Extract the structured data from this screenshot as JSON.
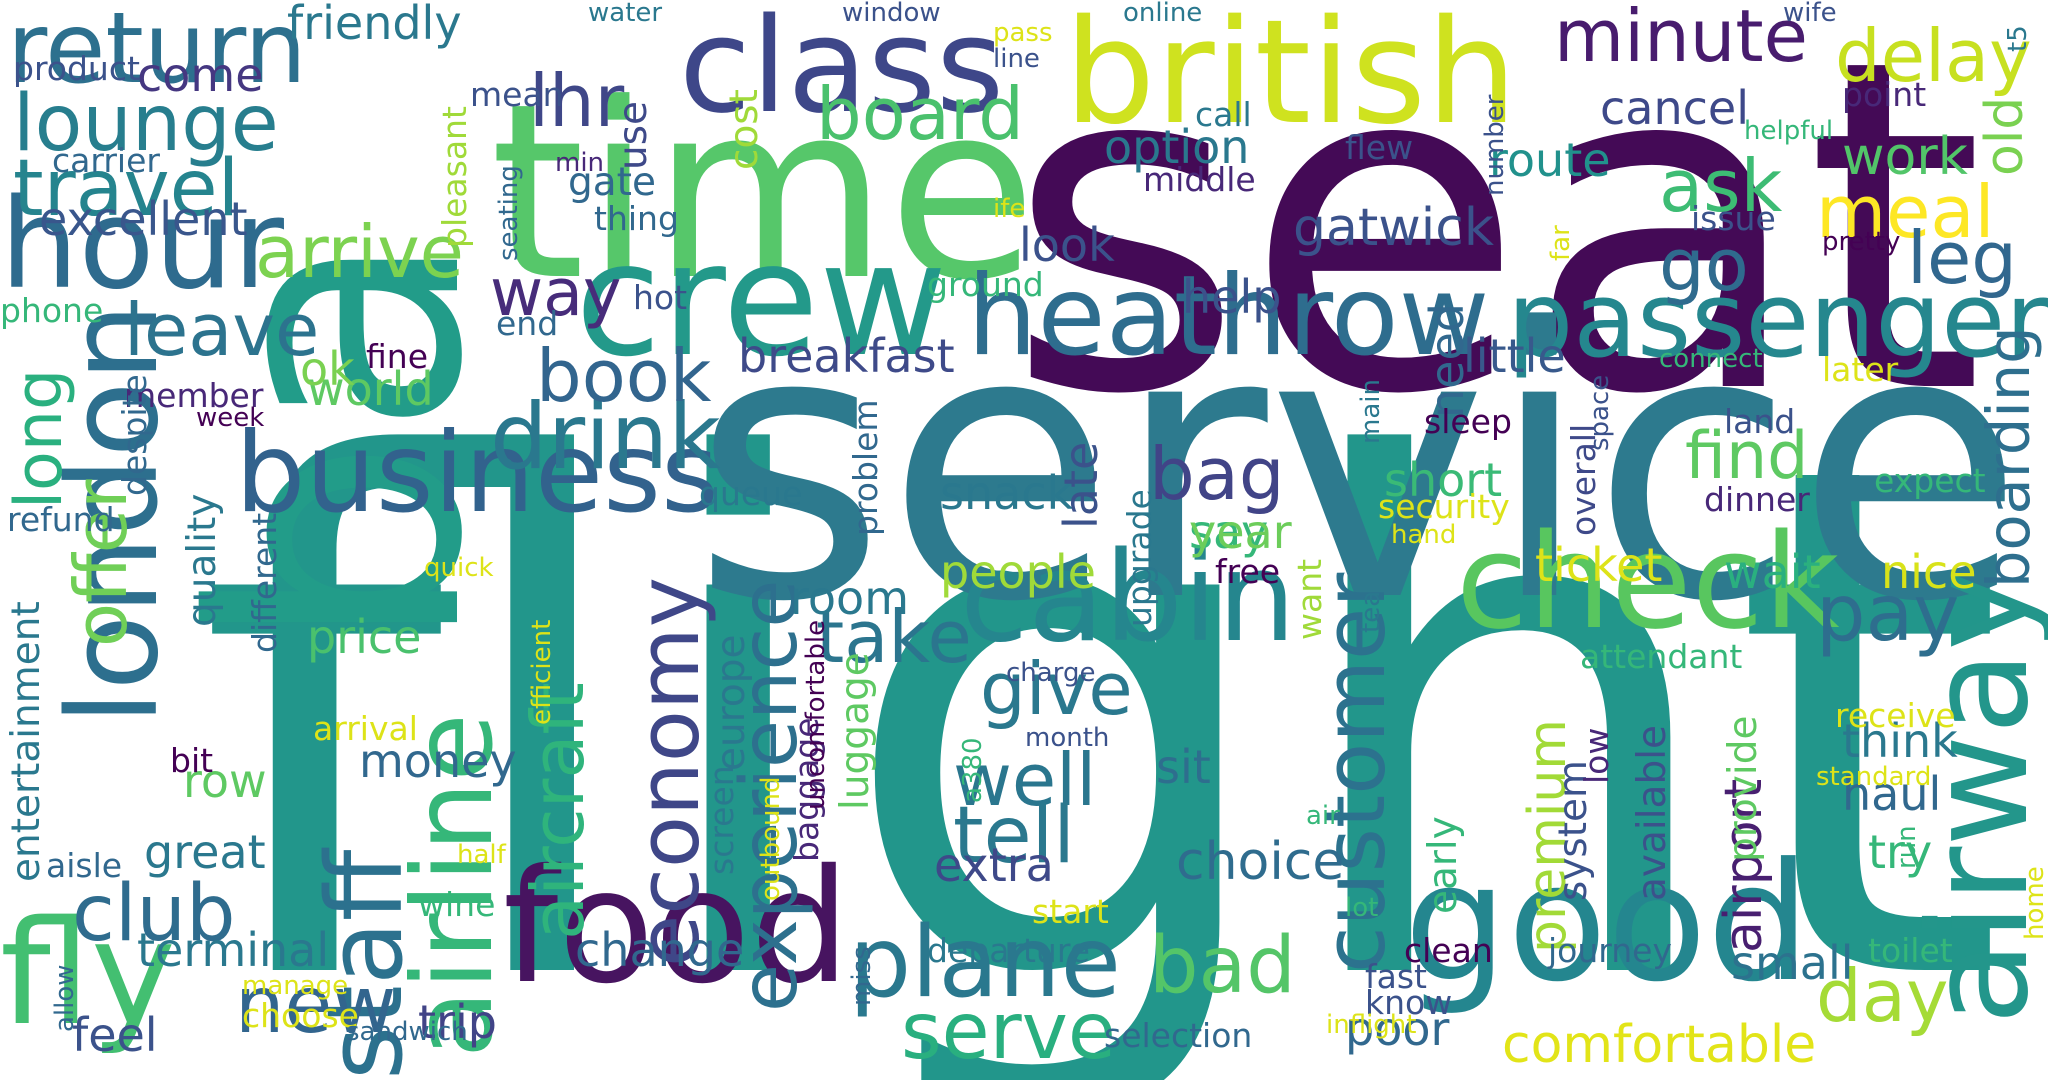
{
  "words": [
    {
      "id": "flight",
      "text": "flight",
      "color": "#22968b"
    },
    {
      "id": "seat",
      "text": "seat",
      "color": "#440a56"
    },
    {
      "id": "service",
      "text": "service",
      "color": "#2d7a8e"
    },
    {
      "id": "ba",
      "text": "ba",
      "color": "#229c89"
    },
    {
      "id": "time",
      "text": "time",
      "color": "#56c76a"
    },
    {
      "id": "british",
      "text": "british",
      "color": "#cfe21f"
    },
    {
      "id": "class",
      "text": "class",
      "color": "#3e4789"
    },
    {
      "id": "crew",
      "text": "crew",
      "color": "#23998a"
    },
    {
      "id": "food",
      "text": "food",
      "color": "#471460"
    },
    {
      "id": "good",
      "text": "good",
      "color": "#24868f"
    },
    {
      "id": "airway",
      "text": "airway",
      "color": "#23968b"
    },
    {
      "id": "check",
      "text": "check",
      "color": "#58c65f"
    },
    {
      "id": "cabin",
      "text": "cabin",
      "color": "#25868e"
    },
    {
      "id": "heathrow",
      "text": "heathrow",
      "color": "#2e6d8e"
    },
    {
      "id": "business",
      "text": "business",
      "color": "#32628d"
    },
    {
      "id": "london",
      "text": "london",
      "color": "#2d6f8e"
    },
    {
      "id": "hour",
      "text": "hour",
      "color": "#2e6b8e"
    },
    {
      "id": "airline",
      "text": "airline",
      "color": "#35b779"
    },
    {
      "id": "staff",
      "text": "staff",
      "color": "#2c718e"
    },
    {
      "id": "fly",
      "text": "fly",
      "color": "#43bf71"
    },
    {
      "id": "passenger",
      "text": "passenger",
      "color": "#25878e"
    },
    {
      "id": "return",
      "text": "return",
      "color": "#2d708e"
    },
    {
      "id": "lounge",
      "text": "lounge",
      "color": "#277e8e"
    },
    {
      "id": "travel",
      "text": "travel",
      "color": "#25848e"
    },
    {
      "id": "drink",
      "text": "drink",
      "color": "#2a788e"
    },
    {
      "id": "customer",
      "text": "customer",
      "color": "#2c728e"
    },
    {
      "id": "experience",
      "text": "experience",
      "color": "#2d708e"
    },
    {
      "id": "economy",
      "text": "economy",
      "color": "#3f4788"
    },
    {
      "id": "aircraft",
      "text": "aircraft",
      "color": "#2fb47c"
    },
    {
      "id": "plane",
      "text": "plane",
      "color": "#2a788e"
    },
    {
      "id": "serve",
      "text": "serve",
      "color": "#29af7f"
    },
    {
      "id": "club",
      "text": "club",
      "color": "#2f6c8e"
    },
    {
      "id": "minute",
      "text": "minute",
      "color": "#481c6e"
    },
    {
      "id": "delay",
      "text": "delay",
      "color": "#c7e020"
    },
    {
      "id": "meal",
      "text": "meal",
      "color": "#fde725"
    },
    {
      "id": "ask",
      "text": "ask",
      "color": "#3dbc74"
    },
    {
      "id": "go",
      "text": "go",
      "color": "#2f6b8e"
    },
    {
      "id": "leg",
      "text": "leg",
      "color": "#31678e"
    },
    {
      "id": "board",
      "text": "board",
      "color": "#4ac16d"
    },
    {
      "id": "lhr",
      "text": "lhr",
      "color": "#3f4788"
    },
    {
      "id": "arrive",
      "text": "arrive",
      "color": "#7cd250"
    },
    {
      "id": "leave",
      "text": "leave",
      "color": "#2c738e"
    },
    {
      "id": "way",
      "text": "way",
      "color": "#472c7a"
    },
    {
      "id": "book",
      "text": "book",
      "color": "#32658e"
    },
    {
      "id": "bag",
      "text": "bag",
      "color": "#414487"
    },
    {
      "id": "find",
      "text": "find",
      "color": "#5ec962"
    },
    {
      "id": "boarding",
      "text": "boarding",
      "color": "#2e6f8e"
    },
    {
      "id": "pay",
      "text": "pay",
      "color": "#2e6e8e"
    },
    {
      "id": "take",
      "text": "take",
      "color": "#2b758e"
    },
    {
      "id": "give",
      "text": "give",
      "color": "#2a788e"
    },
    {
      "id": "well",
      "text": "well",
      "color": "#2a768e"
    },
    {
      "id": "tell",
      "text": "tell",
      "color": "#2a788e"
    },
    {
      "id": "premium",
      "text": "premium",
      "color": "#a2da37"
    },
    {
      "id": "airport",
      "text": "airport",
      "color": "#481f70"
    },
    {
      "id": "offer",
      "text": "offer",
      "color": "#70cf57"
    },
    {
      "id": "long",
      "text": "long",
      "color": "#2ab07f"
    },
    {
      "id": "new",
      "text": "new",
      "color": "#32658e"
    },
    {
      "id": "bad",
      "text": "bad",
      "color": "#54c568"
    },
    {
      "id": "day",
      "text": "day",
      "color": "#a5db36"
    },
    {
      "id": "comfortable",
      "text": "comfortable",
      "color": "#e2e418"
    },
    {
      "id": "old",
      "text": "old",
      "color": "#7ad151"
    },
    {
      "id": "work",
      "text": "work",
      "color": "#52c569"
    },
    {
      "id": "option",
      "text": "option",
      "color": "#2a788e"
    },
    {
      "id": "route",
      "text": "route",
      "color": "#21918c"
    },
    {
      "id": "gatwick",
      "text": "gatwick",
      "color": "#3b528b"
    },
    {
      "id": "cancel",
      "text": "cancel",
      "color": "#3e4989"
    },
    {
      "id": "excellent",
      "text": "excellent",
      "color": "#39568c"
    },
    {
      "id": "come",
      "text": "come",
      "color": "#453781"
    },
    {
      "id": "friendly",
      "text": "friendly",
      "color": "#2a788e"
    },
    {
      "id": "little",
      "text": "little",
      "color": "#38598c"
    },
    {
      "id": "need",
      "text": "need",
      "color": "#31688e"
    },
    {
      "id": "say",
      "text": "say",
      "color": "#35b779"
    },
    {
      "id": "year",
      "text": "year",
      "color": "#6ccd5a"
    },
    {
      "id": "short",
      "text": "short",
      "color": "#3aba76"
    },
    {
      "id": "snack",
      "text": "snack",
      "color": "#2a788e"
    },
    {
      "id": "late",
      "text": "late",
      "color": "#3b528b"
    },
    {
      "id": "breakfast",
      "text": "breakfast",
      "color": "#3e4a89"
    },
    {
      "id": "help",
      "text": "help",
      "color": "#3b528b"
    },
    {
      "id": "world",
      "text": "world",
      "color": "#5ec962"
    },
    {
      "id": "ok",
      "text": "ok",
      "color": "#7ad151"
    },
    {
      "id": "fine",
      "text": "fine",
      "color": "#440154"
    },
    {
      "id": "member",
      "text": "member",
      "color": "#482878"
    },
    {
      "id": "week",
      "text": "week",
      "color": "#440154"
    },
    {
      "id": "room",
      "text": "room",
      "color": "#2a788e"
    },
    {
      "id": "people",
      "text": "people",
      "color": "#a0da39"
    },
    {
      "id": "nice",
      "text": "nice",
      "color": "#d8e219"
    },
    {
      "id": "wait",
      "text": "wait",
      "color": "#2ab07f"
    },
    {
      "id": "ticket",
      "text": "ticket",
      "color": "#dde318"
    },
    {
      "id": "free",
      "text": "free",
      "color": "#440154"
    },
    {
      "id": "price",
      "text": "price",
      "color": "#4ac16d"
    },
    {
      "id": "money",
      "text": "money",
      "color": "#31688e"
    },
    {
      "id": "sit",
      "text": "sit",
      "color": "#2e6e8e"
    },
    {
      "id": "choice",
      "text": "choice",
      "color": "#2f6c8e"
    },
    {
      "id": "extra",
      "text": "extra",
      "color": "#3e4989"
    },
    {
      "id": "great",
      "text": "great",
      "color": "#2a788e"
    },
    {
      "id": "row",
      "text": "row",
      "color": "#5ec962"
    },
    {
      "id": "terminal",
      "text": "terminal",
      "color": "#2a788e"
    },
    {
      "id": "change",
      "text": "change",
      "color": "#31688e"
    },
    {
      "id": "trip",
      "text": "trip",
      "color": "#414487"
    },
    {
      "id": "feel",
      "text": "feel",
      "color": "#3b528b"
    },
    {
      "id": "think",
      "text": "think",
      "color": "#2a788e"
    },
    {
      "id": "haul",
      "text": "haul",
      "color": "#31688e"
    },
    {
      "id": "try",
      "text": "try",
      "color": "#35b779"
    },
    {
      "id": "small",
      "text": "small",
      "color": "#2c728e"
    },
    {
      "id": "poor",
      "text": "poor",
      "color": "#31688e"
    },
    {
      "id": "quality",
      "text": "quality",
      "color": "#2a788e"
    },
    {
      "id": "entertainment",
      "text": "entertainment",
      "color": "#2a788e"
    },
    {
      "id": "luggage",
      "text": "luggage",
      "color": "#5ec962"
    },
    {
      "id": "baggage",
      "text": "baggage",
      "color": "#482878"
    },
    {
      "id": "europe",
      "text": "europe",
      "color": "#2a788e"
    },
    {
      "id": "screen",
      "text": "screen",
      "color": "#2a788e"
    },
    {
      "id": "problem",
      "text": "problem",
      "color": "#31688e"
    },
    {
      "id": "cost",
      "text": "cost",
      "color": "#a0da39"
    },
    {
      "id": "use",
      "text": "use",
      "color": "#3e4989"
    },
    {
      "id": "gate",
      "text": "gate",
      "color": "#31688e"
    },
    {
      "id": "thing",
      "text": "thing",
      "color": "#31688e"
    },
    {
      "id": "look",
      "text": "look",
      "color": "#3b528b"
    },
    {
      "id": "hot",
      "text": "hot",
      "color": "#3b528b"
    },
    {
      "id": "end",
      "text": "end",
      "color": "#31688e"
    },
    {
      "id": "system",
      "text": "system",
      "color": "#3b528b"
    },
    {
      "id": "low",
      "text": "low",
      "color": "#482878"
    },
    {
      "id": "available",
      "text": "available",
      "color": "#3b528b"
    },
    {
      "id": "provide",
      "text": "provide",
      "color": "#5ec962"
    },
    {
      "id": "early",
      "text": "early",
      "color": "#35b779"
    },
    {
      "id": "overall",
      "text": "overall",
      "color": "#3e4989"
    },
    {
      "id": "upgrade",
      "text": "upgrade",
      "color": "#2a788e"
    },
    {
      "id": "want",
      "text": "want",
      "color": "#a0da39"
    },
    {
      "id": "product",
      "text": "product",
      "color": "#3b528b"
    },
    {
      "id": "carrier",
      "text": "carrier",
      "color": "#31688e"
    },
    {
      "id": "mean",
      "text": "mean",
      "color": "#3b528b"
    },
    {
      "id": "pleasant",
      "text": "pleasant",
      "color": "#a0da39"
    },
    {
      "id": "seating",
      "text": "seating",
      "color": "#31688e"
    },
    {
      "id": "min",
      "text": "min",
      "color": "#482878"
    },
    {
      "id": "water",
      "text": "water",
      "color": "#2a788e"
    },
    {
      "id": "window",
      "text": "window",
      "color": "#3b528b"
    },
    {
      "id": "pass",
      "text": "pass",
      "color": "#dde318"
    },
    {
      "id": "line",
      "text": "line",
      "color": "#3b528b"
    },
    {
      "id": "online",
      "text": "online",
      "color": "#2a788e"
    },
    {
      "id": "wife",
      "text": "wife",
      "color": "#3b528b"
    },
    {
      "id": "t5",
      "text": "t5",
      "color": "#2a788e"
    },
    {
      "id": "point",
      "text": "point",
      "color": "#482878"
    },
    {
      "id": "call",
      "text": "call",
      "color": "#2a788e"
    },
    {
      "id": "flew",
      "text": "flew",
      "color": "#3b528b"
    },
    {
      "id": "middle",
      "text": "middle",
      "color": "#482878"
    },
    {
      "id": "number",
      "text": "number",
      "color": "#3b528b"
    },
    {
      "id": "helpful",
      "text": "helpful",
      "color": "#35b779"
    },
    {
      "id": "issue",
      "text": "issue",
      "color": "#3b528b"
    },
    {
      "id": "pretty",
      "text": "pretty",
      "color": "#440154"
    },
    {
      "id": "life",
      "text": "ife",
      "color": "#dde318"
    },
    {
      "id": "ground",
      "text": "ground",
      "color": "#35b779"
    },
    {
      "id": "far",
      "text": "far",
      "color": "#dde318"
    },
    {
      "id": "connect",
      "text": "connect",
      "color": "#35b779"
    },
    {
      "id": "later",
      "text": "later",
      "color": "#dde318"
    },
    {
      "id": "phone",
      "text": "phone",
      "color": "#35b779"
    },
    {
      "id": "despite",
      "text": "despite",
      "color": "#31688e"
    },
    {
      "id": "refund",
      "text": "refund",
      "color": "#31688e"
    },
    {
      "id": "queue",
      "text": "queue",
      "color": "#2a788e"
    },
    {
      "id": "sleep",
      "text": "sleep",
      "color": "#440154"
    },
    {
      "id": "main",
      "text": "main",
      "color": "#2a788e"
    },
    {
      "id": "space",
      "text": "space",
      "color": "#3b528b"
    },
    {
      "id": "land",
      "text": "land",
      "color": "#3b528b"
    },
    {
      "id": "dinner",
      "text": "dinner",
      "color": "#482878"
    },
    {
      "id": "expect",
      "text": "expect",
      "color": "#35b779"
    },
    {
      "id": "security",
      "text": "security",
      "color": "#dde318"
    },
    {
      "id": "hand",
      "text": "hand",
      "color": "#dde318"
    },
    {
      "id": "tea",
      "text": "tea",
      "color": "#2a788e"
    },
    {
      "id": "quick",
      "text": "quick",
      "color": "#dde318"
    },
    {
      "id": "different",
      "text": "different",
      "color": "#31688e"
    },
    {
      "id": "efficient",
      "text": "efficient",
      "color": "#dde318"
    },
    {
      "id": "arrival",
      "text": "arrival",
      "color": "#dde318"
    },
    {
      "id": "bit",
      "text": "bit",
      "color": "#440154"
    },
    {
      "id": "charge",
      "text": "charge",
      "color": "#3b528b"
    },
    {
      "id": "uncomfortable",
      "text": "uncomfortable",
      "color": "#440154"
    },
    {
      "id": "outbound",
      "text": "outbound",
      "color": "#dde318"
    },
    {
      "id": "month",
      "text": "month",
      "color": "#3b528b"
    },
    {
      "id": "a380",
      "text": "a380",
      "color": "#35b779"
    },
    {
      "id": "attendant",
      "text": "attendant",
      "color": "#35b779"
    },
    {
      "id": "receive",
      "text": "receive",
      "color": "#dde318"
    },
    {
      "id": "standard",
      "text": "standard",
      "color": "#dde318"
    },
    {
      "id": "air",
      "text": "air",
      "color": "#35b779"
    },
    {
      "id": "half",
      "text": "half",
      "color": "#dde318"
    },
    {
      "id": "aisle",
      "text": "aisle",
      "color": "#31688e"
    },
    {
      "id": "wine",
      "text": "wine",
      "color": "#35b779"
    },
    {
      "id": "start",
      "text": "start",
      "color": "#dde318"
    },
    {
      "id": "lot",
      "text": "lot",
      "color": "#35b779"
    },
    {
      "id": "run",
      "text": "run",
      "color": "#35b779"
    },
    {
      "id": "home",
      "text": "home",
      "color": "#dde318"
    },
    {
      "id": "toilet",
      "text": "toilet",
      "color": "#35b779"
    },
    {
      "id": "journey",
      "text": "journey",
      "color": "#31688e"
    },
    {
      "id": "clean",
      "text": "clean",
      "color": "#440154"
    },
    {
      "id": "fast",
      "text": "fast",
      "color": "#3b528b"
    },
    {
      "id": "know",
      "text": "know",
      "color": "#3b528b"
    },
    {
      "id": "inflight",
      "text": "inflight",
      "color": "#dde318"
    },
    {
      "id": "departure",
      "text": "departure",
      "color": "#2a788e"
    },
    {
      "id": "manage",
      "text": "manage",
      "color": "#dde318"
    },
    {
      "id": "choose",
      "text": "choose",
      "color": "#dde318"
    },
    {
      "id": "allow",
      "text": "allow",
      "color": "#31688e"
    },
    {
      "id": "miss",
      "text": "miss",
      "color": "#31688e"
    },
    {
      "id": "sandwich",
      "text": "sandwich",
      "color": "#31688e"
    },
    {
      "id": "selection",
      "text": "selection",
      "color": "#31688e"
    }
  ]
}
